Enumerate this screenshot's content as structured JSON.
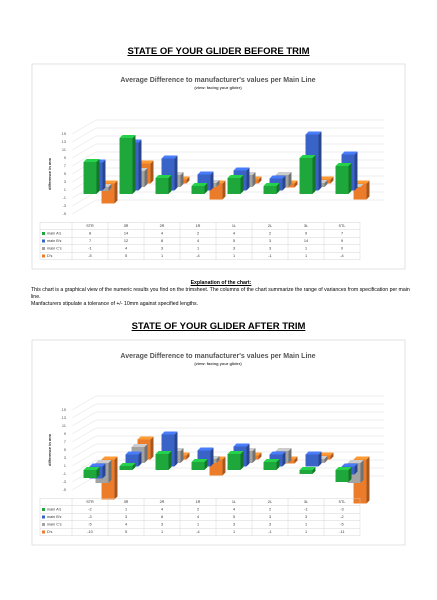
{
  "header": {
    "title_before": "STATE OF YOUR GLIDER BEFORE TRIM",
    "title_after": "STATE OF YOUR GLIDER AFTER TRIM"
  },
  "explanation": {
    "heading": "Explanation of the chart:",
    "text": "This chart is a graphical view of the numeric results you find on the trimsheet. The columns of the chart summarize the range of variances from specification per main line.",
    "note": "Manfacturers stipulate a tolerance of +/- 10mm against specified lengths."
  },
  "chart_data": [
    {
      "type": "bar3d",
      "title": "Average Difference to manufacturer's values per Main Line",
      "subtitle": "(view: facing your glider)",
      "y_label": "difference in mm",
      "categories": [
        "STR",
        "3R",
        "2R",
        "1R",
        "1L",
        "2L",
        "3L",
        "STL"
      ],
      "series": [
        {
          "name": "main A's",
          "color": "#1ea83c",
          "values": [
            8,
            14,
            4,
            2,
            4,
            2,
            9,
            7
          ]
        },
        {
          "name": "main B's",
          "color": "#3a63c8",
          "values": [
            7,
            12,
            8,
            4,
            5,
            3,
            14,
            9
          ]
        },
        {
          "name": "main C's",
          "color": "#a3a3a3",
          "values": [
            -1,
            4,
            3,
            1,
            3,
            3,
            1,
            0
          ]
        },
        {
          "name": "D's",
          "color": "#ec7c2a",
          "values": [
            -5,
            5,
            1,
            -4,
            1,
            -1,
            1,
            -4
          ]
        }
      ],
      "ylim": [
        -5,
        15
      ],
      "yticks": [
        -5,
        -3,
        -1,
        1,
        3,
        5,
        7,
        9,
        11,
        13,
        15
      ],
      "grid": true
    },
    {
      "type": "bar3d",
      "title": "Average Difference to manufacturer's values per Main Line",
      "subtitle": "(view: facing your glider)",
      "y_label": "difference in mm",
      "categories": [
        "STR",
        "3R",
        "2R",
        "1R",
        "1L",
        "2L",
        "3L",
        "STL"
      ],
      "series": [
        {
          "name": "main A's",
          "color": "#1ea83c",
          "values": [
            -2,
            1,
            4,
            2,
            4,
            2,
            -1,
            -3
          ]
        },
        {
          "name": "main B's",
          "color": "#3a63c8",
          "values": [
            -3,
            3,
            8,
            4,
            5,
            3,
            3,
            -2
          ]
        },
        {
          "name": "main C's",
          "color": "#a3a3a3",
          "values": [
            -5,
            4,
            3,
            1,
            3,
            3,
            1,
            -5
          ]
        },
        {
          "name": "D's",
          "color": "#ec7c2a",
          "values": [
            -10,
            5,
            1,
            -4,
            1,
            -1,
            1,
            -11
          ]
        }
      ],
      "ylim": [
        -5,
        15
      ],
      "yticks": [
        -5,
        -3,
        -1,
        1,
        3,
        5,
        7,
        9,
        11,
        13,
        15
      ],
      "grid": true
    }
  ]
}
